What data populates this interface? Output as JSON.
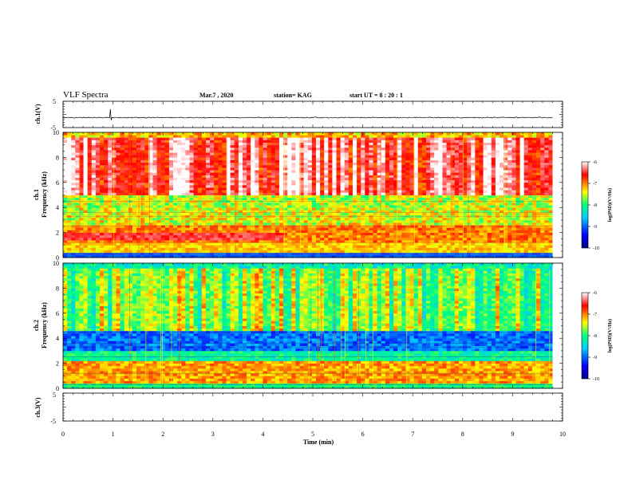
{
  "header": {
    "title": "VLF Spectra",
    "date": "Mar.7 , 2020",
    "station": "station= KAG",
    "start": "start  UT =   8 : 20 : 1"
  },
  "chart_data": [
    {
      "type": "line",
      "name": "ch1-waveform",
      "ylabel": "ch.1(V)",
      "ylim": [
        -5,
        5
      ],
      "yticks": [
        "5",
        "-5"
      ],
      "xlim": [
        0,
        10
      ],
      "baseline": -1.2
    },
    {
      "type": "heatmap",
      "name": "ch1-spectrogram",
      "ylabel_line1": "ch.1",
      "ylabel_line2": "Frequency (kHz)",
      "ylim": [
        0,
        10
      ],
      "yticks": [
        "0",
        "2",
        "4",
        "6",
        "8",
        "10"
      ],
      "xlim": [
        0,
        10
      ],
      "colorbar": {
        "label": "log(PSD)(V²/Hz)",
        "range": [
          -10,
          -6
        ],
        "ticks": [
          "-6",
          "-7",
          "-8",
          "-9",
          "-10"
        ]
      }
    },
    {
      "type": "heatmap",
      "name": "ch2-spectrogram",
      "ylabel_line1": "ch.2",
      "ylabel_line2": "Frequency (kHz)",
      "ylim": [
        0,
        10
      ],
      "yticks": [
        "0",
        "2",
        "4",
        "6",
        "8",
        "10"
      ],
      "xlim": [
        0,
        10
      ],
      "colorbar": {
        "label": "log(PSD)(V²/Hz)",
        "range": [
          -10,
          -6
        ],
        "ticks": [
          "-6",
          "-7",
          "-8",
          "-9",
          "-10"
        ]
      }
    },
    {
      "type": "line",
      "name": "ch3-waveform",
      "ylabel": "ch.3(V)",
      "ylim": [
        -5,
        5
      ],
      "yticks": [
        "5",
        "-5"
      ],
      "xlim": [
        0,
        10
      ],
      "xlabel": "Time (min)",
      "xticks": [
        "0",
        "1",
        "2",
        "3",
        "4",
        "5",
        "6",
        "7",
        "8",
        "9",
        "10"
      ]
    }
  ],
  "colors": {
    "colorbar_stops": [
      "#000080",
      "#0000ff",
      "#00c8ff",
      "#00ff80",
      "#ffff00",
      "#ff0000",
      "#ffffff"
    ]
  }
}
